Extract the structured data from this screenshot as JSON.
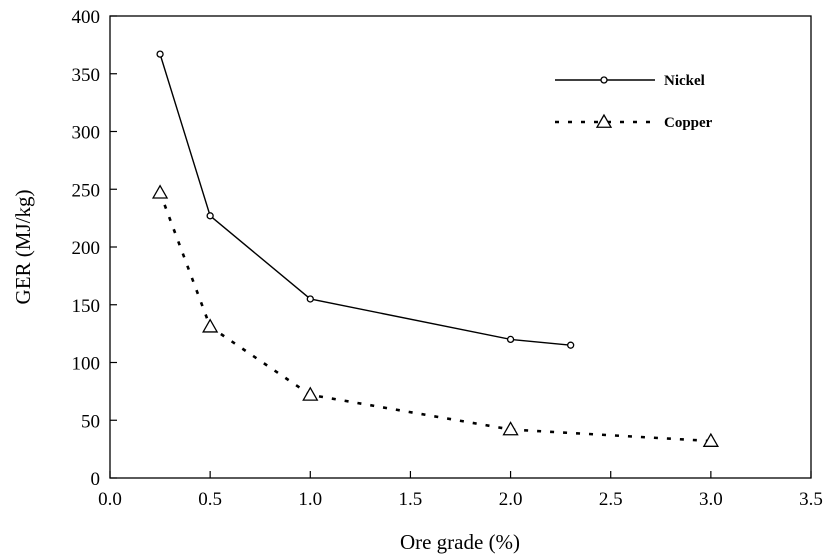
{
  "chart_data": {
    "type": "line",
    "title": "",
    "xlabel": "Ore grade (%)",
    "ylabel": "GER (MJ/kg)",
    "xlim": [
      0.0,
      3.5
    ],
    "ylim": [
      0,
      400
    ],
    "xticks": [
      "0.0",
      "0.5",
      "1.0",
      "1.5",
      "2.0",
      "2.5",
      "3.0",
      "3.5"
    ],
    "yticks": [
      "0",
      "50",
      "100",
      "150",
      "200",
      "250",
      "300",
      "350",
      "400"
    ],
    "grid": false,
    "legend_position": "top-right",
    "series": [
      {
        "name": "Nickel",
        "marker": "circle",
        "line_style": "solid",
        "x": [
          0.25,
          0.5,
          1.0,
          2.0,
          2.3
        ],
        "y": [
          367,
          227,
          155,
          120,
          115
        ]
      },
      {
        "name": "Copper",
        "marker": "triangle",
        "line_style": "dotted",
        "x": [
          0.25,
          0.5,
          1.0,
          2.0,
          3.0
        ],
        "y": [
          247,
          131,
          72,
          42,
          32
        ]
      }
    ]
  }
}
